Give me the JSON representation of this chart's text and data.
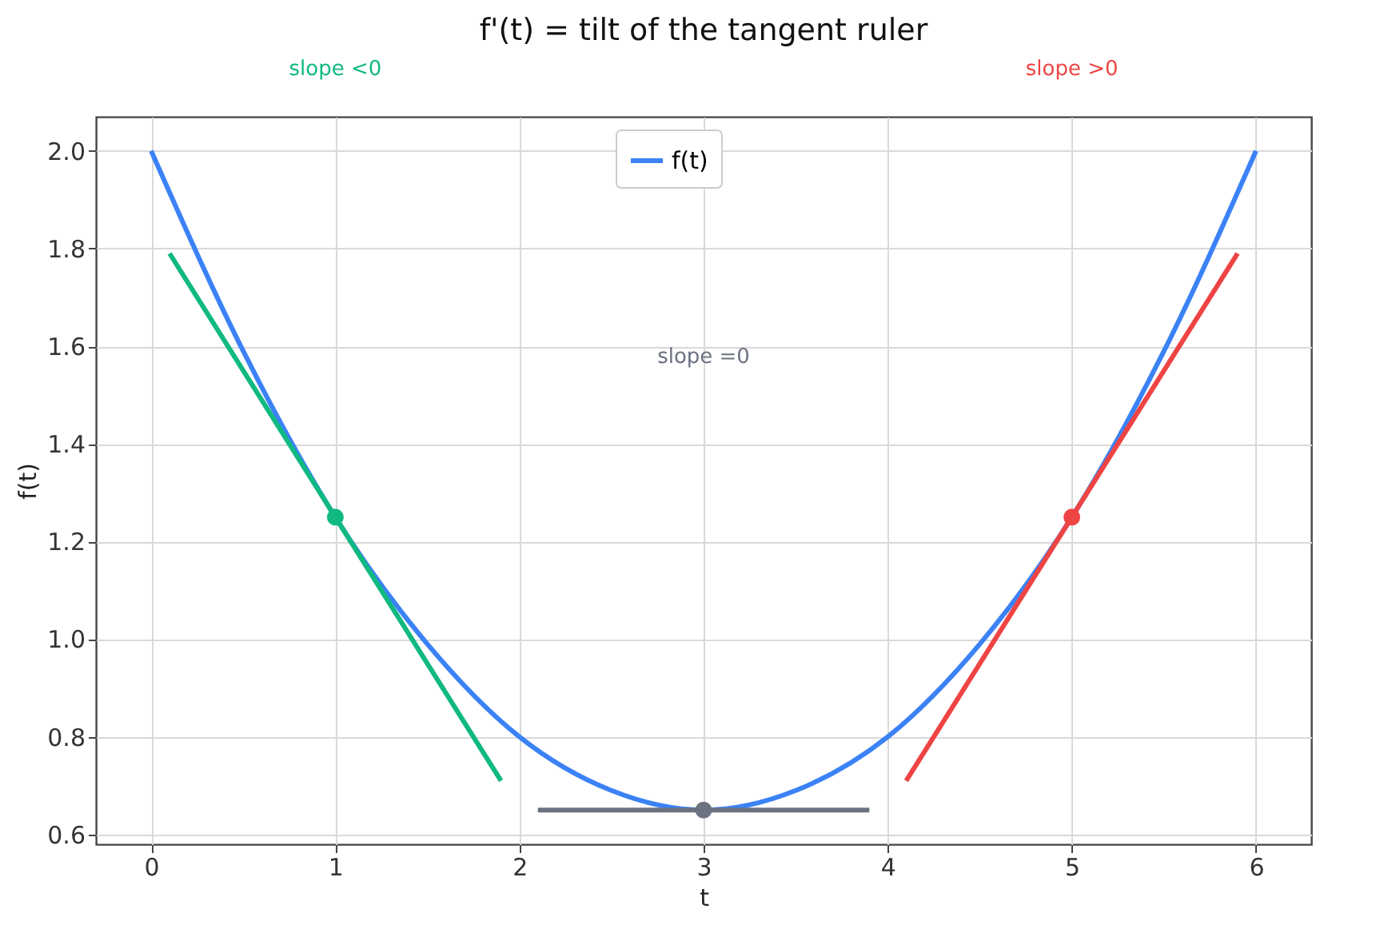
{
  "chart_data": {
    "type": "line",
    "title": "f'(t) = tilt of the tangent ruler",
    "xlabel": "t",
    "ylabel": "f(t)",
    "series": [
      {
        "name": "f(t)",
        "color": "#3b82f6",
        "x": [
          0,
          0.5,
          1,
          1.5,
          2,
          2.5,
          3,
          3.5,
          4,
          4.5,
          5,
          5.5,
          6
        ],
        "values": [
          2.0,
          1.59,
          1.25,
          0.99,
          0.8,
          0.69,
          0.65,
          0.69,
          0.8,
          0.99,
          1.25,
          1.59,
          2.0
        ]
      },
      {
        "color": "#10b981",
        "x": [
          0.1,
          1.9
        ],
        "values": [
          1.79,
          0.71
        ]
      },
      {
        "color": "#6b7280",
        "x": [
          2.1,
          3.9
        ],
        "values": [
          0.65,
          0.65
        ]
      },
      {
        "color": "#ef4444",
        "x": [
          4.1,
          5.9
        ],
        "values": [
          0.71,
          1.79
        ]
      },
      {
        "type": "scatter",
        "x": [
          1,
          3,
          5
        ],
        "values": [
          1.25,
          0.65,
          1.25
        ],
        "colors": [
          "#10b981",
          "#6b7280",
          "#ef4444"
        ]
      }
    ],
    "annotations": [
      "slope <0",
      "slope =0",
      "slope >0"
    ],
    "xlim": [
      -0.3,
      6.3
    ],
    "ylim": [
      0.58,
      2.07
    ],
    "xticks": [
      0,
      1,
      2,
      3,
      4,
      5,
      6
    ],
    "yticks": [
      0.6,
      0.8,
      {
        "value": 1,
        "label": "1.0"
      },
      1.2,
      1.4,
      1.6,
      1.8,
      {
        "value": 2,
        "label": "2.0"
      }
    ],
    "grid": true,
    "legend": "top",
    "line_style": "solid"
  }
}
